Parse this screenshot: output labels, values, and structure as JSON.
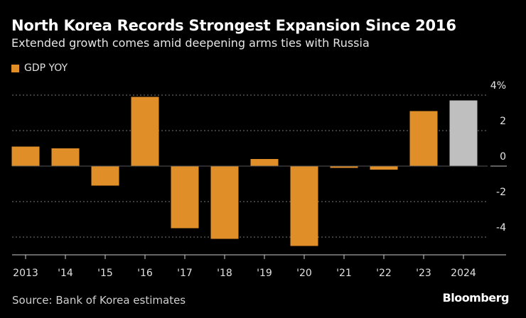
{
  "colors": {
    "bar": "#e08e28",
    "highlight": "#bfbfbf",
    "grid": "#777777",
    "axis": "#cccccc",
    "background": "#000000"
  },
  "chart_data": {
    "type": "bar",
    "title": "North Korea Records Strongest Expansion Since 2016",
    "subtitle": "Extended growth comes amid deepening arms ties with Russia",
    "legend": [
      {
        "name": "GDP YOY",
        "color": "#e08e28"
      }
    ],
    "legend_placement": "top-left",
    "categories": [
      "2013",
      "'14",
      "'15",
      "'16",
      "'17",
      "'18",
      "'19",
      "'20",
      "'21",
      "'22",
      "'23",
      "2024"
    ],
    "series": [
      {
        "name": "GDP YOY",
        "values": [
          1.1,
          1.0,
          -1.1,
          3.9,
          -3.5,
          -4.1,
          0.4,
          -4.5,
          -0.1,
          -0.2,
          3.1,
          3.7
        ]
      }
    ],
    "highlighted_category": "2024",
    "ylim": [
      -5,
      4.5
    ],
    "yticks": [
      {
        "value": 4,
        "label": "4%"
      },
      {
        "value": 2,
        "label": "2"
      },
      {
        "value": 0,
        "label": "0"
      },
      {
        "value": -2,
        "label": "-2"
      },
      {
        "value": -4,
        "label": "-4"
      }
    ],
    "grid": true,
    "y_axis_side": "right"
  },
  "footer": {
    "source": "Source: Bank of Korea estimates",
    "brand": "Bloomberg"
  }
}
